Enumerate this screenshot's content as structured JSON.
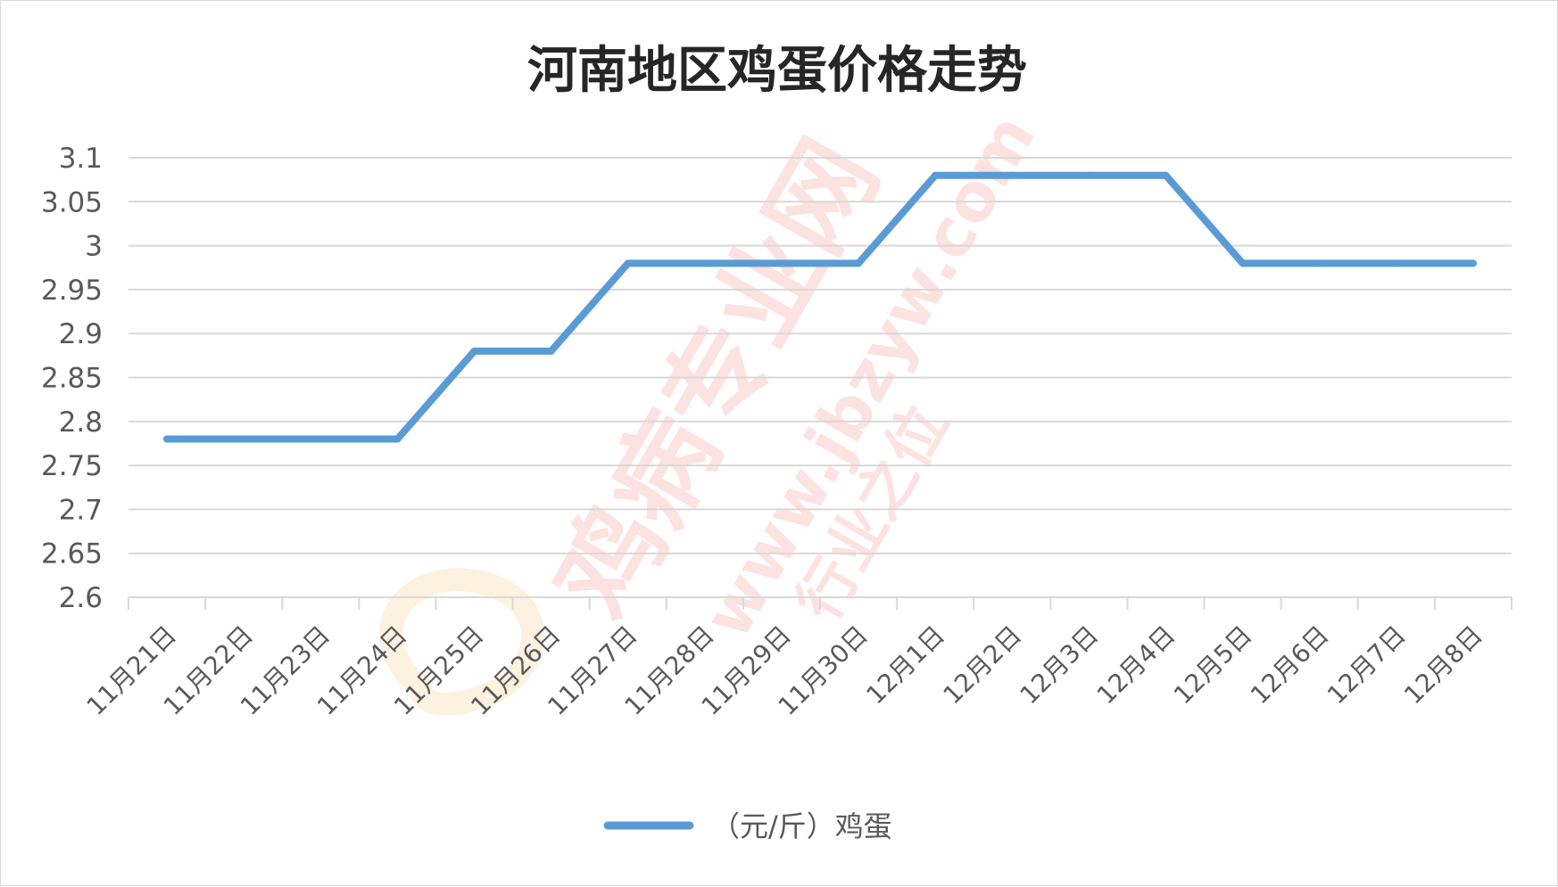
{
  "chart_data": {
    "type": "line",
    "title": "河南地区鸡蛋价格走势",
    "categories": [
      "11月21日",
      "11月22日",
      "11月23日",
      "11月24日",
      "11月25日",
      "11月26日",
      "11月27日",
      "11月28日",
      "11月29日",
      "11月30日",
      "12月1日",
      "12月2日",
      "12月3日",
      "12月4日",
      "12月5日",
      "12月6日",
      "12月7日",
      "12月8日"
    ],
    "series": [
      {
        "name": "（元/斤）鸡蛋",
        "values": [
          2.78,
          2.78,
          2.78,
          2.78,
          2.88,
          2.88,
          2.98,
          2.98,
          2.98,
          2.98,
          3.08,
          3.08,
          3.08,
          3.08,
          2.98,
          2.98,
          2.98,
          2.98
        ],
        "color": "#5b9bd5"
      }
    ],
    "ylim": [
      2.6,
      3.1
    ],
    "yticks": [
      "2.6",
      "2.65",
      "2.7",
      "2.75",
      "2.8",
      "2.85",
      "2.9",
      "2.95",
      "3",
      "3.05",
      "3.1"
    ],
    "xlabel": "",
    "ylabel": "",
    "grid": true,
    "legend_position": "bottom"
  },
  "watermark": {
    "brand": "鸡病专业网",
    "url": "www.jbzyw.com",
    "slogan": "行业之位",
    "color": "#e9463a"
  }
}
